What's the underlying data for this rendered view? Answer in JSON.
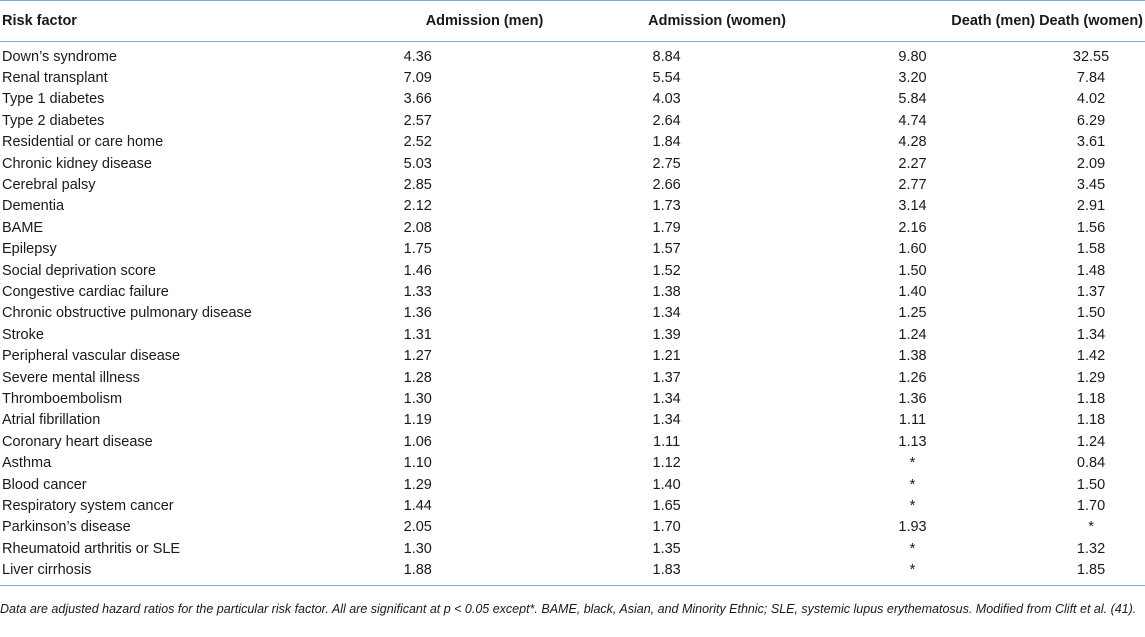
{
  "table": {
    "columns": [
      "Risk factor",
      "Admission (men)",
      "Admission (women)",
      "Death (men)",
      "Death (women)"
    ],
    "rows": [
      [
        "Down’s syndrome",
        "4.36",
        "8.84",
        "9.80",
        "32.55"
      ],
      [
        "Renal transplant",
        "7.09",
        "5.54",
        "3.20",
        "7.84"
      ],
      [
        "Type 1 diabetes",
        "3.66",
        "4.03",
        "5.84",
        "4.02"
      ],
      [
        "Type 2 diabetes",
        "2.57",
        "2.64",
        "4.74",
        "6.29"
      ],
      [
        "Residential or care home",
        "2.52",
        "1.84",
        "4.28",
        "3.61"
      ],
      [
        "Chronic kidney disease",
        "5.03",
        "2.75",
        "2.27",
        "2.09"
      ],
      [
        "Cerebral palsy",
        "2.85",
        "2.66",
        "2.77",
        "3.45"
      ],
      [
        "Dementia",
        "2.12",
        "1.73",
        "3.14",
        "2.91"
      ],
      [
        "BAME",
        "2.08",
        "1.79",
        "2.16",
        "1.56"
      ],
      [
        "Epilepsy",
        "1.75",
        "1.57",
        "1.60",
        "1.58"
      ],
      [
        "Social deprivation score",
        "1.46",
        "1.52",
        "1.50",
        "1.48"
      ],
      [
        "Congestive cardiac failure",
        "1.33",
        "1.38",
        "1.40",
        "1.37"
      ],
      [
        "Chronic obstructive pulmonary disease",
        "1.36",
        "1.34",
        "1.25",
        "1.50"
      ],
      [
        "Stroke",
        "1.31",
        "1.39",
        "1.24",
        "1.34"
      ],
      [
        "Peripheral vascular disease",
        "1.27",
        "1.21",
        "1.38",
        "1.42"
      ],
      [
        "Severe mental illness",
        "1.28",
        "1.37",
        "1.26",
        "1.29"
      ],
      [
        "Thromboembolism",
        "1.30",
        "1.34",
        "1.36",
        "1.18"
      ],
      [
        "Atrial fibrillation",
        "1.19",
        "1.34",
        "1.11",
        "1.18"
      ],
      [
        "Coronary heart disease",
        "1.06",
        "1.11",
        "1.13",
        "1.24"
      ],
      [
        "Asthma",
        "1.10",
        "1.12",
        "*",
        "0.84"
      ],
      [
        "Blood cancer",
        "1.29",
        "1.40",
        "*",
        "1.50"
      ],
      [
        "Respiratory system cancer",
        "1.44",
        "1.65",
        "*",
        "1.70"
      ],
      [
        "Parkinson’s disease",
        "2.05",
        "1.70",
        "1.93",
        "*"
      ],
      [
        "Rheumatoid arthritis or SLE",
        "1.30",
        "1.35",
        "*",
        "1.32"
      ],
      [
        "Liver cirrhosis",
        "1.88",
        "1.83",
        "*",
        "1.85"
      ]
    ]
  },
  "footnote": "Data are adjusted hazard ratios for the particular risk factor. All are significant at p < 0.05 except*. BAME, black, Asian, and Minority Ethnic; SLE, systemic lupus erythematosus. Modified from Clift et al. (41)."
}
